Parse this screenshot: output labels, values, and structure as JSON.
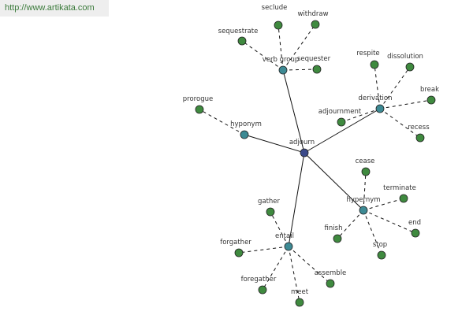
{
  "watermark": "http://www.artikata.com",
  "nodes": [
    {
      "label": "adjourn"
    },
    {
      "label": "verb group"
    },
    {
      "label": "derivation"
    },
    {
      "label": "hyponym"
    },
    {
      "label": "hypernym"
    },
    {
      "label": "entail"
    },
    {
      "label": "seclude"
    },
    {
      "label": "withdraw"
    },
    {
      "label": "sequestrate"
    },
    {
      "label": "sequester"
    },
    {
      "label": "respite"
    },
    {
      "label": "dissolution"
    },
    {
      "label": "break"
    },
    {
      "label": "recess"
    },
    {
      "label": "adjournment"
    },
    {
      "label": "prorogue"
    },
    {
      "label": "cease"
    },
    {
      "label": "terminate"
    },
    {
      "label": "end"
    },
    {
      "label": "stop"
    },
    {
      "label": "finish"
    },
    {
      "label": "gather"
    },
    {
      "label": "forgather"
    },
    {
      "label": "foregather"
    },
    {
      "label": "meet"
    },
    {
      "label": "assemble"
    }
  ]
}
